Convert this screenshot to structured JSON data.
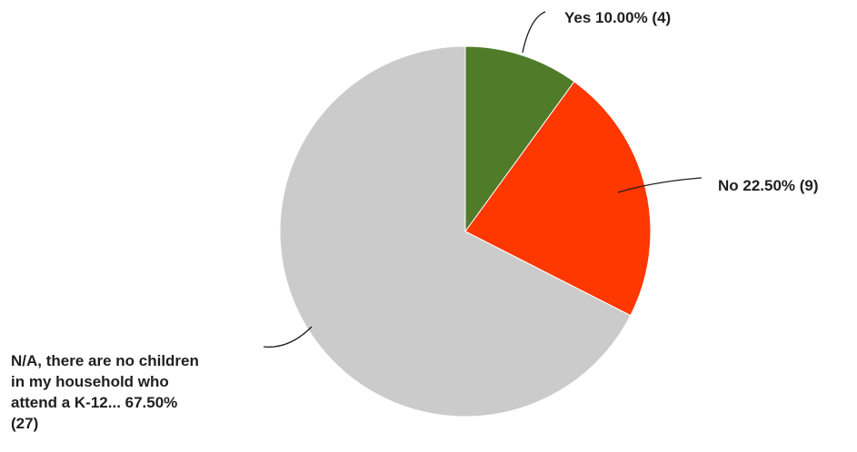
{
  "chart_data": {
    "type": "pie",
    "title": "",
    "slices": [
      {
        "label": "Yes",
        "percent": 10.0,
        "count": 4,
        "color": "#507b29",
        "label_lines": [
          "Yes 10.00% (4)"
        ]
      },
      {
        "label": "No",
        "percent": 22.5,
        "count": 9,
        "color": "#ff3700",
        "label_lines": [
          "No 22.50% (9)"
        ]
      },
      {
        "label": "N/A, there are no children in my household who attend a K-12...",
        "percent": 67.5,
        "count": 27,
        "color": "#cbcbcb",
        "label_lines": [
          "N/A, there are no children",
          "in my household who",
          "attend a K-12... 67.50%",
          "(27)"
        ]
      }
    ],
    "start_angle": "12 o'clock",
    "direction": "clockwise",
    "legend": "none"
  }
}
